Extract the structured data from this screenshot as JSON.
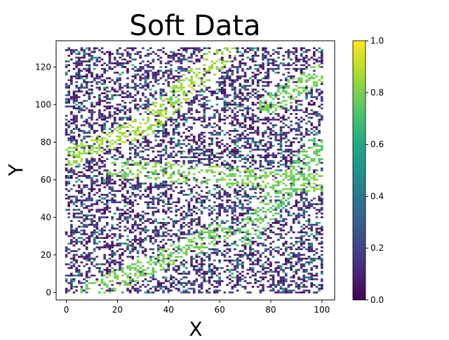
{
  "chart_data": {
    "type": "heatmap",
    "title": "Soft Data",
    "xlabel": "X",
    "ylabel": "Y",
    "xlim": [
      -4,
      105
    ],
    "ylim": [
      -4,
      134
    ],
    "xticks": [
      0,
      20,
      40,
      60,
      80,
      100
    ],
    "yticks": [
      0,
      20,
      40,
      60,
      80,
      100,
      120
    ],
    "grid": false,
    "colormap": "viridis",
    "colorbar": {
      "min": 0.0,
      "max": 1.0,
      "ticks": [
        "0.0",
        "0.2",
        "0.4",
        "0.6",
        "0.8",
        "1.0"
      ]
    },
    "grid_x_range": [
      0,
      100
    ],
    "grid_y_range": [
      0,
      130
    ],
    "sample_fraction": 0.42,
    "description_of_field": "sparse scattered samples on a 101x131 grid; mostly low values with diagonal bands of high values (~0.8-0.9)",
    "high_value_bands": [
      {
        "from": [
          0,
          72
        ],
        "to": [
          30,
          88
        ],
        "value": 0.85
      },
      {
        "from": [
          30,
          88
        ],
        "to": [
          62,
          128
        ],
        "value": 0.85
      },
      {
        "from": [
          20,
          66
        ],
        "to": [
          100,
          58
        ],
        "value": 0.8
      },
      {
        "from": [
          10,
          0
        ],
        "to": [
          60,
          32
        ],
        "value": 0.78
      },
      {
        "from": [
          70,
          30
        ],
        "to": [
          100,
          80
        ],
        "value": 0.75
      },
      {
        "from": [
          80,
          100
        ],
        "to": [
          100,
          118
        ],
        "value": 0.78
      }
    ]
  }
}
